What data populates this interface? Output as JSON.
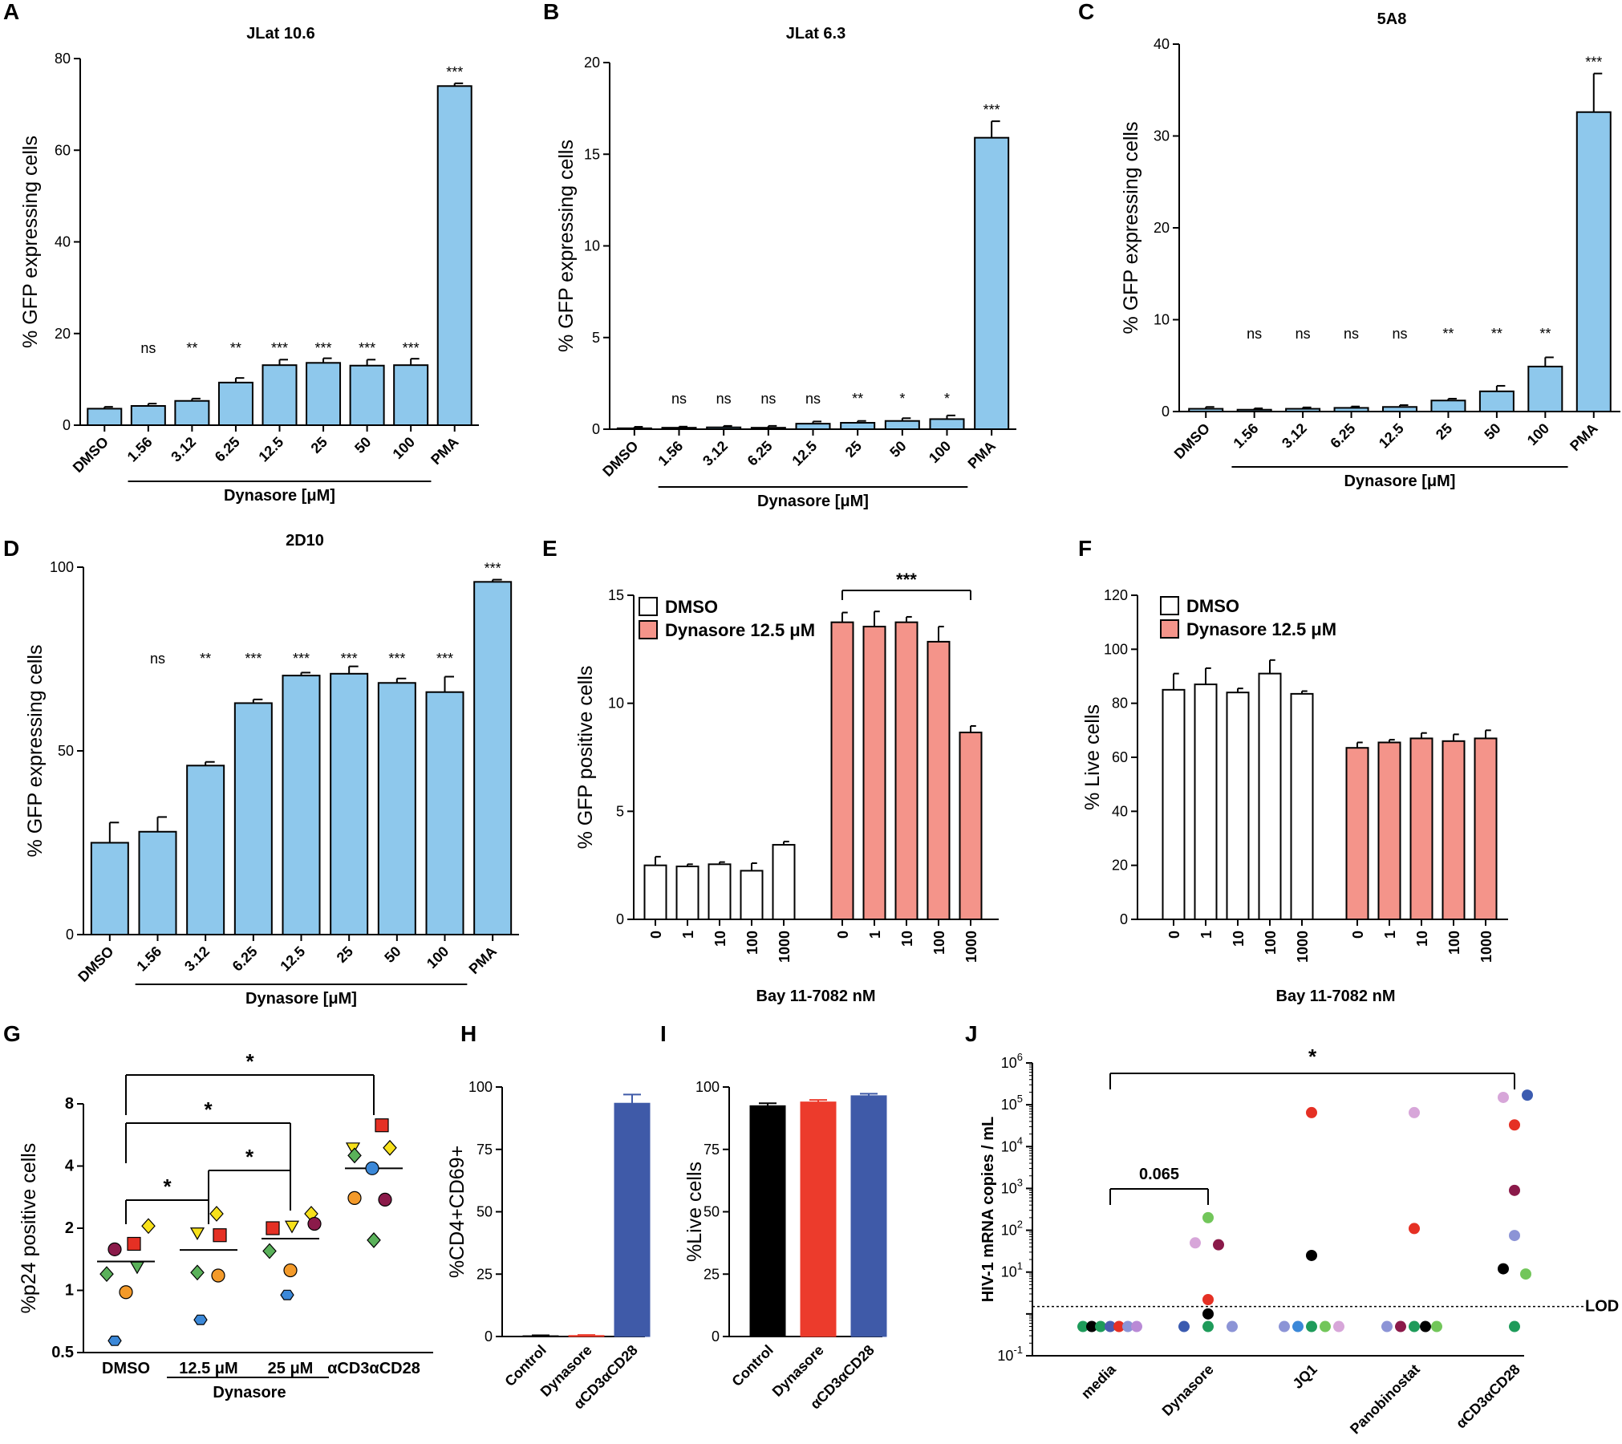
{
  "colors": {
    "blue_bar": "#8ec8ec",
    "salmon_bar": "#f4948a",
    "white_bar": "#ffffff",
    "navy_bar": "#3f5aa8",
    "red_bar": "#ec3b2c",
    "black_bar": "#000000",
    "axis": "#000000"
  },
  "chart_data": [
    {
      "id": "A",
      "type": "bar",
      "title": "JLat 10.6",
      "ylabel": "% GFP expressing cells",
      "ylim": [
        0,
        80
      ],
      "yticks": [
        0,
        20,
        40,
        60,
        80
      ],
      "categories": [
        "DMSO",
        "1.56",
        "3.12",
        "6.25",
        "12.5",
        "25",
        "50",
        "100",
        "PMA"
      ],
      "values": [
        3.6,
        4.2,
        5.3,
        9.3,
        13.1,
        13.6,
        13.0,
        13.1,
        74.0
      ],
      "errors": [
        0.4,
        0.5,
        0.5,
        1.0,
        1.2,
        1.0,
        1.3,
        1.4,
        0.6
      ],
      "significance": [
        "",
        "ns",
        "**",
        "**",
        "***",
        "***",
        "***",
        "***",
        "***"
      ],
      "group_label": "Dynasore [μM]"
    },
    {
      "id": "B",
      "type": "bar",
      "title": "JLat 6.3",
      "ylabel": "% GFP expressing cells",
      "ylim": [
        0,
        20
      ],
      "yticks": [
        0,
        5,
        10,
        15,
        20
      ],
      "categories": [
        "DMSO",
        "1.56",
        "3.12",
        "6.25",
        "12.5",
        "25",
        "50",
        "100",
        "PMA"
      ],
      "values": [
        0.05,
        0.08,
        0.1,
        0.08,
        0.3,
        0.35,
        0.45,
        0.55,
        15.9
      ],
      "errors": [
        0.08,
        0.06,
        0.08,
        0.1,
        0.12,
        0.1,
        0.15,
        0.2,
        0.9
      ],
      "significance": [
        "",
        "ns",
        "ns",
        "ns",
        "ns",
        "**",
        "*",
        "*",
        "***"
      ],
      "group_label": "Dynasore [μM]"
    },
    {
      "id": "C",
      "type": "bar",
      "title": "5A8",
      "ylabel": "% GFP expressing cells",
      "ylim": [
        0,
        40
      ],
      "yticks": [
        0,
        10,
        20,
        30,
        40
      ],
      "categories": [
        "DMSO",
        "1.56",
        "3.12",
        "6.25",
        "12.5",
        "25",
        "50",
        "100",
        "PMA"
      ],
      "values": [
        0.3,
        0.2,
        0.3,
        0.4,
        0.5,
        1.2,
        2.2,
        4.9,
        32.6
      ],
      "errors": [
        0.2,
        0.15,
        0.15,
        0.15,
        0.2,
        0.2,
        0.6,
        1.0,
        4.2
      ],
      "significance": [
        "",
        "ns",
        "ns",
        "ns",
        "ns",
        "**",
        "**",
        "**",
        "***"
      ],
      "group_label": "Dynasore [μM]"
    },
    {
      "id": "D",
      "type": "bar",
      "title": "2D10",
      "ylabel": "% GFP expressing cells",
      "ylim": [
        0,
        100
      ],
      "yticks": [
        0,
        50,
        100
      ],
      "categories": [
        "DMSO",
        "1.56",
        "3.12",
        "6.25",
        "12.5",
        "25",
        "50",
        "100",
        "PMA"
      ],
      "values": [
        25,
        28,
        46,
        63,
        70.5,
        71,
        68.5,
        66,
        96
      ],
      "errors": [
        5.5,
        4,
        1,
        1,
        0.8,
        2,
        1.2,
        4.2,
        0.6
      ],
      "significance": [
        "",
        "ns",
        "**",
        "***",
        "***",
        "***",
        "***",
        "***",
        "***"
      ],
      "group_label": "Dynasore [μM]"
    },
    {
      "id": "E",
      "type": "bar",
      "ylabel": "% GFP positive cells",
      "ylim": [
        0,
        15
      ],
      "yticks": [
        0,
        5,
        10,
        15
      ],
      "xlabel": "Bay 11-7082 nM",
      "categories": [
        "0",
        "1",
        "10",
        "100",
        "1000"
      ],
      "series": [
        {
          "name": "DMSO",
          "values": [
            2.5,
            2.45,
            2.55,
            2.25,
            3.45
          ],
          "errors": [
            0.4,
            0.1,
            0.1,
            0.35,
            0.15
          ]
        },
        {
          "name": "Dynasore 12.5 μM",
          "values": [
            13.75,
            13.55,
            13.75,
            12.85,
            8.65
          ],
          "errors": [
            0.45,
            0.7,
            0.25,
            0.7,
            0.3
          ]
        }
      ],
      "bracket_label": "***"
    },
    {
      "id": "F",
      "type": "bar",
      "ylabel": "% Live cells",
      "ylim": [
        0,
        120
      ],
      "yticks": [
        0,
        20,
        40,
        60,
        80,
        100,
        120
      ],
      "xlabel": "Bay 11-7082 nM",
      "categories": [
        "0",
        "1",
        "10",
        "100",
        "1000"
      ],
      "series": [
        {
          "name": "DMSO",
          "values": [
            85,
            87,
            84,
            91,
            83.5
          ],
          "errors": [
            6,
            6,
            1.5,
            5,
            1
          ]
        },
        {
          "name": "Dynasore 12.5 μM",
          "values": [
            63.5,
            65.5,
            67,
            66,
            67
          ],
          "errors": [
            2,
            1,
            2,
            2.5,
            3
          ]
        }
      ]
    },
    {
      "id": "G",
      "type": "scatter",
      "ylabel": "%p24 positive cells",
      "yscale": "log2",
      "ylim": [
        0.5,
        8
      ],
      "yticks": [
        "0.5",
        "1",
        "2",
        "4",
        "8"
      ],
      "categories": [
        "DMSO",
        "12.5 μM",
        "25 μM",
        "αCD3αCD28"
      ],
      "group_label": "Dynasore",
      "means": [
        1.38,
        1.57,
        1.78,
        3.9
      ],
      "points": [
        [
          {
            "s": "circle",
            "c": "#8b1a4a",
            "y": 1.58
          },
          {
            "s": "square",
            "c": "#e53024",
            "y": 1.68
          },
          {
            "s": "diamond",
            "c": "#f7e11b",
            "y": 2.05
          },
          {
            "s": "diamond",
            "c": "#5ab15a",
            "y": 1.2
          },
          {
            "s": "triangle",
            "c": "#5ab15a",
            "y": 1.3
          },
          {
            "s": "circle",
            "c": "#f39a2a",
            "y": 0.98
          },
          {
            "s": "hexagon",
            "c": "#3b88d8",
            "y": 0.57
          }
        ],
        [
          {
            "s": "diamond",
            "c": "#f7e11b",
            "y": 2.35
          },
          {
            "s": "triangle",
            "c": "#f7e11b",
            "y": 1.9
          },
          {
            "s": "square",
            "c": "#e53024",
            "y": 1.85
          },
          {
            "s": "diamond",
            "c": "#5ab15a",
            "y": 1.22
          },
          {
            "s": "circle",
            "c": "#f39a2a",
            "y": 1.18
          },
          {
            "s": "hexagon",
            "c": "#3b88d8",
            "y": 0.72
          }
        ],
        [
          {
            "s": "square",
            "c": "#e53024",
            "y": 2.0
          },
          {
            "s": "triangle",
            "c": "#f7e11b",
            "y": 2.05
          },
          {
            "s": "diamond",
            "c": "#f7e11b",
            "y": 2.35
          },
          {
            "s": "circle",
            "c": "#8b1a4a",
            "y": 2.1
          },
          {
            "s": "diamond",
            "c": "#5ab15a",
            "y": 1.55
          },
          {
            "s": "circle",
            "c": "#f39a2a",
            "y": 1.25
          },
          {
            "s": "hexagon",
            "c": "#3b88d8",
            "y": 0.95
          }
        ],
        [
          {
            "s": "square",
            "c": "#e53024",
            "y": 6.3
          },
          {
            "s": "triangle",
            "c": "#f7e11b",
            "y": 4.9
          },
          {
            "s": "diamond",
            "c": "#5ab15a",
            "y": 4.5
          },
          {
            "s": "diamond",
            "c": "#f7e11b",
            "y": 4.9
          },
          {
            "s": "circle",
            "c": "#3b88d8",
            "y": 3.9
          },
          {
            "s": "circle",
            "c": "#f39a2a",
            "y": 2.8
          },
          {
            "s": "circle",
            "c": "#8b1a4a",
            "y": 2.75
          },
          {
            "s": "diamond",
            "c": "#5ab15a",
            "y": 1.75
          }
        ]
      ],
      "brackets": [
        {
          "from": 0,
          "to": 3,
          "label": "*"
        },
        {
          "from": 0,
          "to": 2,
          "label": "*"
        },
        {
          "from": 1,
          "to": 2,
          "label": "*"
        },
        {
          "from": 0,
          "to": 1,
          "label": "*"
        }
      ]
    },
    {
      "id": "H",
      "type": "bar",
      "ylabel": "%CD4+CD69+",
      "ylim": [
        0,
        100
      ],
      "yticks": [
        0,
        25,
        50,
        75,
        100
      ],
      "categories": [
        "Control",
        "Dynasore",
        "αCD3αCD28"
      ],
      "values": [
        0.3,
        0.4,
        93.5
      ],
      "errors": [
        0.2,
        0.2,
        3.5
      ]
    },
    {
      "id": "I",
      "type": "bar",
      "ylabel": "%Live cells",
      "ylim": [
        0,
        100
      ],
      "yticks": [
        0,
        25,
        50,
        75,
        100
      ],
      "categories": [
        "Control",
        "Dynasore",
        "αCD3αCD28"
      ],
      "values": [
        92.5,
        94,
        96.5
      ],
      "errors": [
        1.0,
        0.8,
        0.8
      ]
    },
    {
      "id": "J",
      "type": "scatter",
      "ylabel": "HIV-1 mRNA copies / mL",
      "yscale": "log10",
      "ylim": [
        0.1,
        1000000
      ],
      "ytick_exponents": [
        "-1",
        "1",
        "2",
        "3",
        "4",
        "5",
        "6"
      ],
      "categories": [
        "media",
        "Dynasore",
        "JQ1",
        "Panobinostat",
        "αCD3αCD28"
      ],
      "lod_label": "LOD",
      "lod_value": 1.5,
      "points": [
        [
          {
            "c": "#1e9b5a",
            "y": 0.5,
            "dx": -34
          },
          {
            "c": "#000000",
            "y": 0.5,
            "dx": -23
          },
          {
            "c": "#1e9b5a",
            "y": 0.5,
            "dx": -12
          },
          {
            "c": "#4a5bb0",
            "y": 0.5,
            "dx": 0
          },
          {
            "c": "#e53024",
            "y": 0.5,
            "dx": 11
          },
          {
            "c": "#8c94d6",
            "y": 0.5,
            "dx": 22
          },
          {
            "c": "#b98ad6",
            "y": 0.5,
            "dx": 33
          }
        ],
        [
          {
            "c": "#72c65a",
            "y": 200,
            "dx": 0
          },
          {
            "c": "#d7a6d9",
            "y": 50,
            "dx": -16
          },
          {
            "c": "#8b1a4a",
            "y": 45,
            "dx": 13
          },
          {
            "c": "#e53024",
            "y": 2.2,
            "dx": 0
          },
          {
            "c": "#000000",
            "y": 1.0,
            "dx": 0
          },
          {
            "c": "#3b5bb0",
            "y": 0.5,
            "dx": -30
          },
          {
            "c": "#1e9b5a",
            "y": 0.5,
            "dx": 0
          },
          {
            "c": "#8c94d6",
            "y": 0.5,
            "dx": 30
          }
        ],
        [
          {
            "c": "#e53024",
            "y": 65000,
            "dx": 0
          },
          {
            "c": "#000000",
            "y": 25,
            "dx": 0
          },
          {
            "c": "#8c94d6",
            "y": 0.5,
            "dx": -34
          },
          {
            "c": "#3b88d8",
            "y": 0.5,
            "dx": -17
          },
          {
            "c": "#1e9b5a",
            "y": 0.5,
            "dx": 0
          },
          {
            "c": "#72c65a",
            "y": 0.5,
            "dx": 17
          },
          {
            "c": "#d7a6d9",
            "y": 0.5,
            "dx": 34
          }
        ],
        [
          {
            "c": "#d7a6d9",
            "y": 65000,
            "dx": 0
          },
          {
            "c": "#e53024",
            "y": 110,
            "dx": 0
          },
          {
            "c": "#8c94d6",
            "y": 0.5,
            "dx": -34
          },
          {
            "c": "#8b1a4a",
            "y": 0.5,
            "dx": -17
          },
          {
            "c": "#1e9b5a",
            "y": 0.5,
            "dx": 0
          },
          {
            "c": "#000000",
            "y": 0.5,
            "dx": 14
          },
          {
            "c": "#72c65a",
            "y": 0.5,
            "dx": 28
          }
        ],
        [
          {
            "c": "#d7a6d9",
            "y": 150000,
            "dx": -14
          },
          {
            "c": "#3b5bb0",
            "y": 170000,
            "dx": 16
          },
          {
            "c": "#e53024",
            "y": 33000,
            "dx": 0
          },
          {
            "c": "#8b1a4a",
            "y": 900,
            "dx": 0
          },
          {
            "c": "#8c94d6",
            "y": 75,
            "dx": 0
          },
          {
            "c": "#000000",
            "y": 12,
            "dx": -14
          },
          {
            "c": "#72c65a",
            "y": 9,
            "dx": 14
          },
          {
            "c": "#1e9b5a",
            "y": 0.5,
            "dx": 0
          }
        ]
      ],
      "brackets": [
        {
          "from": 0,
          "to": 4,
          "label": "*"
        },
        {
          "from": 0,
          "to": 1,
          "label": "0.065"
        }
      ]
    }
  ]
}
